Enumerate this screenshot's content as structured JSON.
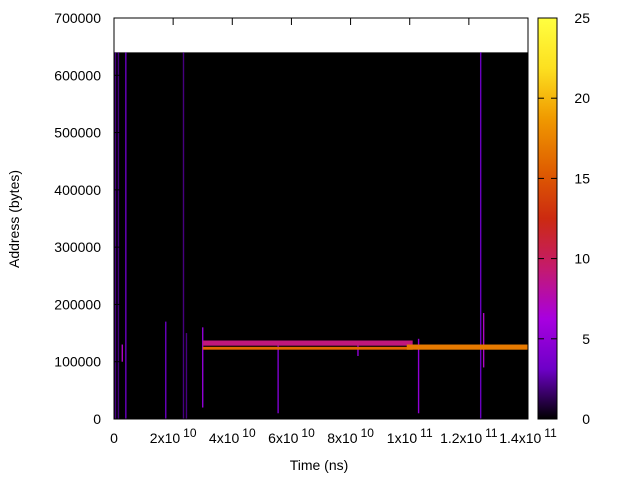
{
  "chart_data": {
    "type": "heatmap",
    "title": "",
    "xlabel": "Time (ns)",
    "ylabel": "Address (bytes)",
    "xlim": [
      0,
      140000000000
    ],
    "ylim": [
      0,
      700000
    ],
    "grid": false,
    "x_ticks": [
      {
        "value": 0,
        "mant": "0",
        "exp": ""
      },
      {
        "value": 20000000000,
        "mant": "2x10",
        "exp": "10"
      },
      {
        "value": 40000000000,
        "mant": "4x10",
        "exp": "10"
      },
      {
        "value": 60000000000,
        "mant": "6x10",
        "exp": "10"
      },
      {
        "value": 80000000000,
        "mant": "8x10",
        "exp": "10"
      },
      {
        "value": 100000000000,
        "mant": "1x10",
        "exp": "11"
      },
      {
        "value": 120000000000,
        "mant": "1.2x10",
        "exp": "11"
      },
      {
        "value": 140000000000,
        "mant": "1.4x10",
        "exp": "11"
      }
    ],
    "y_ticks": [
      {
        "value": 0,
        "label": "0"
      },
      {
        "value": 100000,
        "label": "100000"
      },
      {
        "value": 200000,
        "label": "200000"
      },
      {
        "value": 300000,
        "label": "300000"
      },
      {
        "value": 400000,
        "label": "400000"
      },
      {
        "value": 500000,
        "label": "500000"
      },
      {
        "value": 600000,
        "label": "600000"
      },
      {
        "value": 700000,
        "label": "700000"
      }
    ],
    "data_extent": {
      "x": [
        0,
        140000000000
      ],
      "y": [
        0,
        640000
      ]
    },
    "background_value": 0,
    "colorbar": {
      "range": [
        0,
        25
      ],
      "ticks": [
        0,
        5,
        10,
        15,
        20,
        25
      ],
      "palette": [
        "#000000",
        "#6e00c8",
        "#a800e0",
        "#c41a6e",
        "#cc2a10",
        "#e06000",
        "#f09a00",
        "#fde020",
        "#ffff40"
      ]
    },
    "bands": [
      {
        "x_start": 30000000000,
        "x_end": 101000000000,
        "y_start": 128000,
        "y_end": 137000,
        "value": 9
      },
      {
        "x_start": 30000000000,
        "x_end": 101000000000,
        "y_start": 121000,
        "y_end": 126000,
        "value": 16
      },
      {
        "x_start": 99000000000,
        "x_end": 140000000000,
        "y_start": 121000,
        "y_end": 130000,
        "value": 17
      }
    ],
    "streaks": [
      {
        "x": 500000000,
        "y_start": 0,
        "y_end": 640000,
        "value": 2
      },
      {
        "x": 1500000000,
        "y_start": 0,
        "y_end": 640000,
        "value": 2
      },
      {
        "x": 2800000000,
        "y_start": 100000,
        "y_end": 130000,
        "value": 7
      },
      {
        "x": 4000000000,
        "y_start": 0,
        "y_end": 640000,
        "value": 3
      },
      {
        "x": 17500000000,
        "y_start": 0,
        "y_end": 170000,
        "value": 3
      },
      {
        "x": 23500000000,
        "y_start": 0,
        "y_end": 640000,
        "value": 2
      },
      {
        "x": 24500000000,
        "y_start": 0,
        "y_end": 150000,
        "value": 2
      },
      {
        "x": 30000000000,
        "y_start": 20000,
        "y_end": 160000,
        "value": 5
      },
      {
        "x": 55500000000,
        "y_start": 10000,
        "y_end": 130000,
        "value": 4
      },
      {
        "x": 82500000000,
        "y_start": 110000,
        "y_end": 130000,
        "value": 5
      },
      {
        "x": 103000000000,
        "y_start": 10000,
        "y_end": 140000,
        "value": 5
      },
      {
        "x": 124000000000,
        "y_start": 0,
        "y_end": 640000,
        "value": 3
      },
      {
        "x": 125000000000,
        "y_start": 90000,
        "y_end": 185000,
        "value": 7
      }
    ]
  }
}
